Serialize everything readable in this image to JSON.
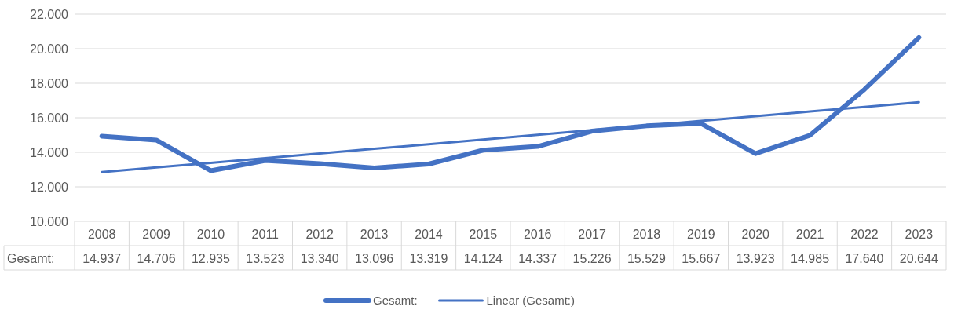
{
  "chart_data": {
    "type": "line",
    "categories": [
      "2008",
      "2009",
      "2010",
      "2011",
      "2012",
      "2013",
      "2014",
      "2015",
      "2016",
      "2017",
      "2018",
      "2019",
      "2020",
      "2021",
      "2022",
      "2023"
    ],
    "series": [
      {
        "name": "Gesamt:",
        "color": "#4472c4",
        "values": [
          14937,
          14706,
          12935,
          13523,
          13340,
          13096,
          13319,
          14124,
          14337,
          15226,
          15529,
          15667,
          13923,
          14985,
          17640,
          20644
        ],
        "value_labels": [
          "14.937",
          "14.706",
          "12.935",
          "13.523",
          "13.340",
          "13.096",
          "13.319",
          "14.124",
          "14.337",
          "15.226",
          "15.529",
          "15.667",
          "13.923",
          "14.985",
          "17.640",
          "20.644"
        ]
      },
      {
        "name": "Linear (Gesamt:)",
        "type": "line",
        "color": "#4472c4",
        "values": [
          12850,
          13120,
          13390,
          13660,
          13930,
          14200,
          14470,
          14740,
          15010,
          15280,
          15550,
          15820,
          16090,
          16360,
          16630,
          16900
        ]
      }
    ],
    "ylim": [
      10000,
      22000
    ],
    "yticks": [
      {
        "value": 10000,
        "label": "10.000"
      },
      {
        "value": 12000,
        "label": "12.000"
      },
      {
        "value": 14000,
        "label": "14.000"
      },
      {
        "value": 16000,
        "label": "16.000"
      },
      {
        "value": 18000,
        "label": "18.000"
      },
      {
        "value": 20000,
        "label": "20.000"
      },
      {
        "value": 22000,
        "label": "22.000"
      }
    ],
    "grid": "y",
    "legend": "bottom"
  }
}
